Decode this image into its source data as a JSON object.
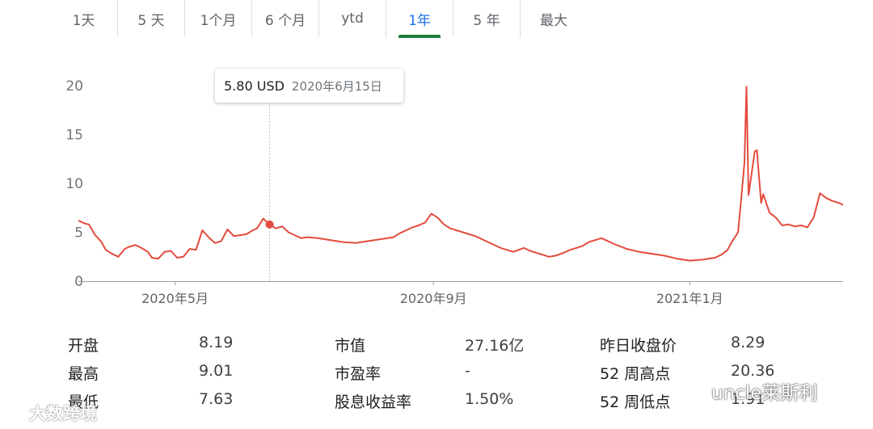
{
  "tabs": [
    "1天",
    "5 天",
    "1个月",
    "6 个月",
    "ytd",
    "1年",
    "5 年",
    "最大"
  ],
  "active_tab_index": 5,
  "tooltip": {
    "price": "5.80 USD",
    "date": "2020年6月15日"
  },
  "colors": {
    "line": "#e34b3d",
    "active_tab": "#188038",
    "axis": "#9aa0a6"
  },
  "chart_data": {
    "type": "line",
    "title": "",
    "xlabel": "",
    "ylabel": "",
    "ylim": [
      0,
      20
    ],
    "yticks": [
      0,
      5,
      10,
      15,
      20
    ],
    "xticks": [
      {
        "date": "2020-05-01",
        "label": "2020年5月"
      },
      {
        "date": "2020-09-01",
        "label": "2020年9月"
      },
      {
        "date": "2021-01-01",
        "label": "2021年1月"
      }
    ],
    "highlight": {
      "date": "2020-06-15",
      "value": 5.8
    },
    "series": [
      {
        "x": [
          "2020-03-16",
          "2020-03-19",
          "2020-03-21",
          "2020-03-24",
          "2020-03-27",
          "2020-03-29",
          "2020-04-01",
          "2020-04-04",
          "2020-04-07",
          "2020-04-09",
          "2020-04-12",
          "2020-04-15",
          "2020-04-18",
          "2020-04-20",
          "2020-04-23",
          "2020-04-26",
          "2020-04-29",
          "2020-05-02",
          "2020-05-05",
          "2020-05-08",
          "2020-05-11",
          "2020-05-14",
          "2020-05-17",
          "2020-05-20",
          "2020-05-23",
          "2020-05-26",
          "2020-05-29",
          "2020-06-01",
          "2020-06-04",
          "2020-06-07",
          "2020-06-09",
          "2020-06-12",
          "2020-06-15",
          "2020-06-18",
          "2020-06-21",
          "2020-06-24",
          "2020-06-27",
          "2020-06-30",
          "2020-07-03",
          "2020-07-08",
          "2020-07-14",
          "2020-07-20",
          "2020-07-26",
          "2020-08-01",
          "2020-08-07",
          "2020-08-13",
          "2020-08-16",
          "2020-08-19",
          "2020-08-22",
          "2020-08-25",
          "2020-08-28",
          "2020-08-31",
          "2020-09-03",
          "2020-09-06",
          "2020-09-09",
          "2020-09-15",
          "2020-09-21",
          "2020-09-27",
          "2020-10-03",
          "2020-10-09",
          "2020-10-14",
          "2020-10-17",
          "2020-10-20",
          "2020-10-23",
          "2020-10-26",
          "2020-10-29",
          "2020-11-02",
          "2020-11-05",
          "2020-11-08",
          "2020-11-11",
          "2020-11-14",
          "2020-11-20",
          "2020-11-26",
          "2020-12-02",
          "2020-12-08",
          "2020-12-14",
          "2020-12-20",
          "2020-12-26",
          "2021-01-01",
          "2021-01-07",
          "2021-01-13",
          "2021-01-16",
          "2021-01-19",
          "2021-01-21",
          "2021-01-24",
          "2021-01-27",
          "2021-01-28",
          "2021-01-29",
          "2021-02-01",
          "2021-02-02",
          "2021-02-04",
          "2021-02-05",
          "2021-02-08",
          "2021-02-11",
          "2021-02-14",
          "2021-02-17",
          "2021-02-20",
          "2021-02-23",
          "2021-02-26",
          "2021-03-01",
          "2021-03-04",
          "2021-03-07",
          "2021-03-10",
          "2021-03-13",
          "2021-03-15"
        ],
        "values": [
          6.2,
          5.9,
          5.8,
          4.7,
          4.0,
          3.2,
          2.8,
          2.5,
          3.3,
          3.5,
          3.7,
          3.4,
          3.0,
          2.4,
          2.3,
          3.0,
          3.1,
          2.4,
          2.5,
          3.3,
          3.2,
          5.2,
          4.5,
          3.9,
          4.1,
          5.3,
          4.6,
          4.7,
          4.8,
          5.2,
          5.4,
          6.4,
          5.8,
          5.4,
          5.6,
          5.0,
          4.7,
          4.4,
          4.5,
          4.4,
          4.2,
          4.0,
          3.9,
          4.1,
          4.3,
          4.5,
          4.9,
          5.2,
          5.5,
          5.7,
          6.0,
          6.9,
          6.5,
          5.8,
          5.4,
          5.0,
          4.6,
          4.0,
          3.4,
          3.0,
          3.4,
          3.1,
          2.9,
          2.7,
          2.5,
          2.6,
          2.9,
          3.2,
          3.4,
          3.6,
          4.0,
          4.4,
          3.8,
          3.3,
          3.0,
          2.8,
          2.6,
          2.3,
          2.1,
          2.2,
          2.4,
          2.7,
          3.2,
          4.0,
          5.0,
          12.0,
          19.9,
          8.8,
          13.3,
          13.4,
          8.0,
          8.9,
          7.0,
          6.5,
          5.7,
          5.8,
          5.6,
          5.7,
          5.5,
          6.5,
          9.0,
          8.5,
          8.2,
          8.0,
          7.8
        ]
      }
    ]
  },
  "stats": [
    [
      {
        "label": "开盘",
        "value": "8.19"
      },
      {
        "label": "市值",
        "value": "27.16亿"
      },
      {
        "label": "昨日收盘价",
        "value": "8.29"
      }
    ],
    [
      {
        "label": "最高",
        "value": "9.01"
      },
      {
        "label": "市盈率",
        "value": "-"
      },
      {
        "label": "52 周高点",
        "value": "20.36"
      }
    ],
    [
      {
        "label": "最低",
        "value": "7.63"
      },
      {
        "label": "股息收益率",
        "value": "1.50%"
      },
      {
        "label": "52 周低点",
        "value": "1.91"
      }
    ]
  ],
  "watermarks": {
    "left": "大数跨境",
    "right": "uncle莱斯利"
  }
}
